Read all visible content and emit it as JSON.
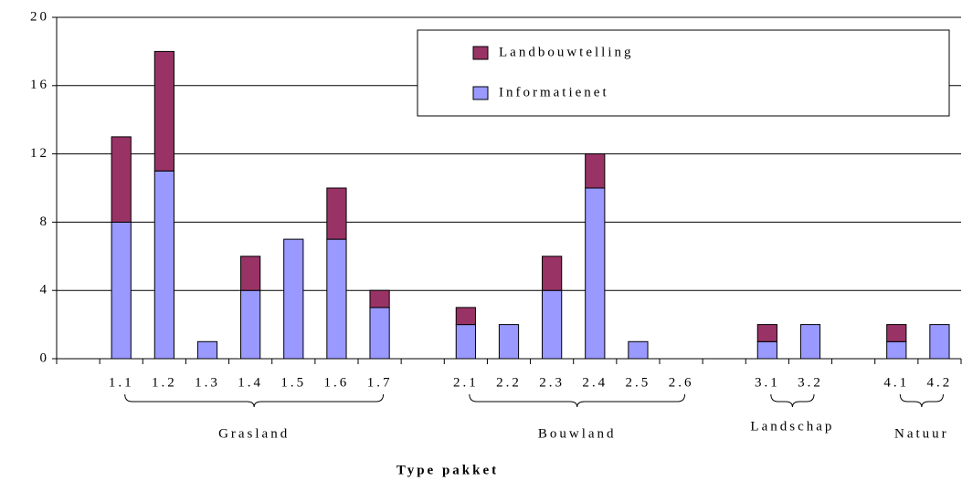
{
  "chart_data": {
    "type": "stacked_bar",
    "x_label": "Type pakket",
    "categories": [
      null,
      "1.1",
      "1.2",
      "1.3",
      "1.4",
      "1.5",
      "1.6",
      "1.7",
      null,
      "2.1",
      "2.2",
      "2.3",
      "2.4",
      "2.5",
      "2.6",
      null,
      "3.1",
      "3.2",
      null,
      "4.1",
      "4.2"
    ],
    "series": [
      {
        "name": "Informatienet",
        "color": "#9999ff",
        "values": [
          null,
          8,
          11,
          1,
          4,
          7,
          7,
          3,
          null,
          2,
          2,
          4,
          10,
          1,
          0,
          null,
          1,
          2,
          null,
          1,
          2
        ]
      },
      {
        "name": "Landbouwtelling",
        "color": "#993366",
        "values": [
          null,
          5,
          7,
          0,
          2,
          0,
          3,
          1,
          null,
          1,
          0,
          2,
          2,
          0,
          0,
          null,
          1,
          0,
          null,
          1,
          0
        ]
      }
    ],
    "groups": [
      "Grasland",
      "Bouwland",
      "Landschap",
      "Natuur"
    ],
    "ylim": [
      0,
      20
    ],
    "yticks": [
      0,
      4,
      8,
      12,
      16,
      20
    ],
    "grid": true
  }
}
